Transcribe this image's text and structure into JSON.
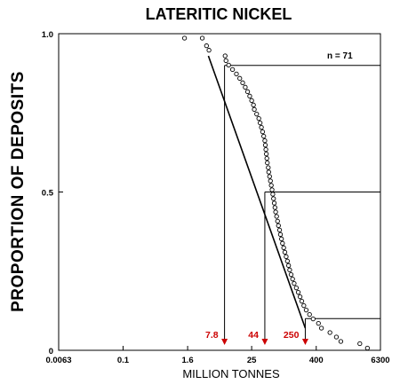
{
  "chart_data": {
    "type": "scatter",
    "title": "LATERITIC NICKEL",
    "xlabel": "MILLION TONNES",
    "ylabel": "PROPORTION OF DEPOSITS",
    "x_scale": "log",
    "xlim": [
      0.0063,
      6300
    ],
    "ylim": [
      0,
      1
    ],
    "x_tick_labels": [
      "0.0063",
      "0.1",
      "1.6",
      "25",
      "400",
      "6300"
    ],
    "x_tick_values": [
      0.0063,
      0.1,
      1.6,
      25,
      400,
      6300
    ],
    "y_tick_labels": [
      "0",
      "0.5",
      "1.0"
    ],
    "y_tick_values": [
      0,
      0.5,
      1.0
    ],
    "n_label": "n = 71",
    "colors": {
      "axes": "#000000",
      "annotation": "#cc0000"
    },
    "series": [
      {
        "marker": "circle",
        "points": [
          [
            1.4,
            0.986
          ],
          [
            3.0,
            0.986
          ],
          [
            3.6,
            0.962
          ],
          [
            4.0,
            0.948
          ],
          [
            8.0,
            0.93
          ],
          [
            8.3,
            0.915
          ],
          [
            9.3,
            0.901
          ],
          [
            11,
            0.887
          ],
          [
            13,
            0.873
          ],
          [
            15,
            0.859
          ],
          [
            17,
            0.845
          ],
          [
            19,
            0.831
          ],
          [
            21,
            0.817
          ],
          [
            23,
            0.803
          ],
          [
            25,
            0.789
          ],
          [
            27,
            0.775
          ],
          [
            28,
            0.761
          ],
          [
            31,
            0.746
          ],
          [
            34,
            0.732
          ],
          [
            36,
            0.718
          ],
          [
            38,
            0.704
          ],
          [
            40,
            0.69
          ],
          [
            42,
            0.676
          ],
          [
            44,
            0.662
          ],
          [
            45,
            0.648
          ],
          [
            46,
            0.634
          ],
          [
            47,
            0.62
          ],
          [
            48,
            0.606
          ],
          [
            49,
            0.592
          ],
          [
            51,
            0.577
          ],
          [
            52,
            0.563
          ],
          [
            54,
            0.549
          ],
          [
            56,
            0.535
          ],
          [
            58,
            0.521
          ],
          [
            60,
            0.507
          ],
          [
            62,
            0.493
          ],
          [
            64,
            0.479
          ],
          [
            66,
            0.465
          ],
          [
            68,
            0.451
          ],
          [
            70,
            0.437
          ],
          [
            73,
            0.423
          ],
          [
            76,
            0.408
          ],
          [
            79,
            0.394
          ],
          [
            83,
            0.38
          ],
          [
            86,
            0.366
          ],
          [
            90,
            0.352
          ],
          [
            94,
            0.338
          ],
          [
            99,
            0.324
          ],
          [
            104,
            0.31
          ],
          [
            110,
            0.296
          ],
          [
            116,
            0.282
          ],
          [
            122,
            0.268
          ],
          [
            128,
            0.254
          ],
          [
            136,
            0.239
          ],
          [
            145,
            0.225
          ],
          [
            155,
            0.211
          ],
          [
            170,
            0.197
          ],
          [
            185,
            0.183
          ],
          [
            200,
            0.169
          ],
          [
            215,
            0.155
          ],
          [
            235,
            0.141
          ],
          [
            260,
            0.127
          ],
          [
            300,
            0.113
          ],
          [
            350,
            0.099
          ],
          [
            440,
            0.085
          ],
          [
            500,
            0.07
          ],
          [
            720,
            0.056
          ],
          [
            950,
            0.042
          ],
          [
            1150,
            0.028
          ],
          [
            2600,
            0.021
          ],
          [
            3600,
            0.007
          ]
        ]
      }
    ],
    "fit_line": [
      [
        3.9,
        0.93
      ],
      [
        250,
        0.07
      ]
    ],
    "percentiles": [
      {
        "label": "7.8",
        "value": 7.8,
        "proportion": 0.9
      },
      {
        "label": "44",
        "value": 44,
        "proportion": 0.5
      },
      {
        "label": "250",
        "value": 250,
        "proportion": 0.1
      }
    ]
  }
}
